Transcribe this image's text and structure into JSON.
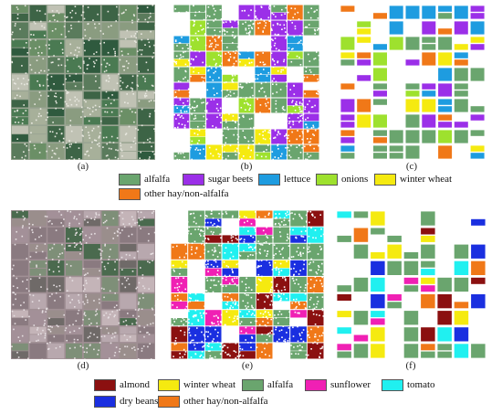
{
  "panels": {
    "a": {
      "caption": "(a)"
    },
    "b": {
      "caption": "(b)"
    },
    "c": {
      "caption": "(c)"
    },
    "d": {
      "caption": "(d)"
    },
    "e": {
      "caption": "(e)"
    },
    "f": {
      "caption": "(f)"
    }
  },
  "legend_top": [
    {
      "label": "alfalfa",
      "color": "#6aa56e",
      "icon": "alfalfa-swatch"
    },
    {
      "label": "sugar beets",
      "color": "#9b2fe8",
      "icon": "sugar-beets-swatch"
    },
    {
      "label": "lettuce",
      "color": "#1e9ce0",
      "icon": "lettuce-swatch"
    },
    {
      "label": "onions",
      "color": "#9ee12e",
      "icon": "onions-swatch"
    },
    {
      "label": "winter wheat",
      "color": "#f5ea10",
      "icon": "winter-wheat-swatch"
    },
    {
      "label": "other hay/non-alfalfa",
      "color": "#f07818",
      "icon": "other-hay-swatch"
    }
  ],
  "legend_bottom": [
    {
      "label": "almond",
      "color": "#8b1010",
      "icon": "almond-swatch"
    },
    {
      "label": "winter wheat",
      "color": "#f5ea10",
      "icon": "winter-wheat-swatch"
    },
    {
      "label": "alfalfa",
      "color": "#6aa56e",
      "icon": "alfalfa-swatch"
    },
    {
      "label": "sunflower",
      "color": "#f020b4",
      "icon": "sunflower-swatch"
    },
    {
      "label": "tomato",
      "color": "#20f0f0",
      "icon": "tomato-swatch"
    },
    {
      "label": "dry beans",
      "color": "#1a2fe0",
      "icon": "dry-beans-swatch"
    },
    {
      "label": "other hay/non-alfalfa",
      "color": "#f07818",
      "icon": "other-hay-swatch"
    }
  ]
}
